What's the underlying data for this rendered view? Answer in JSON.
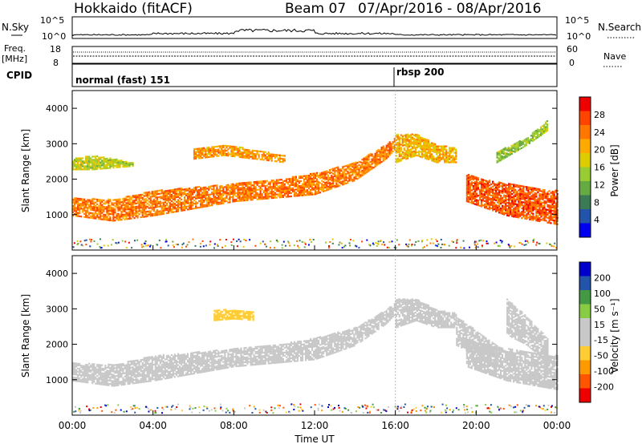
{
  "header": {
    "station": "Hokkaido (fitACF)",
    "beam": "Beam 07",
    "date_range": "07/Apr/2016 - 08/Apr/2016"
  },
  "top_panels": {
    "nsky_label": "N.Sky",
    "nsky_ticks": [
      "10^5",
      "10^0"
    ],
    "nsearch_label": "N.Search",
    "freq_label": "Freq.",
    "freq_unit": "[MHz]",
    "freq_ticks": [
      "18",
      "8"
    ],
    "nave_label": "Nave",
    "nave_ticks": [
      "60",
      "0"
    ],
    "cpid_label": "CPID",
    "cpid_modes": [
      {
        "name": "normal (fast) 151",
        "start_hour": 0
      },
      {
        "name": "rbsp 200",
        "start_hour": 16
      }
    ]
  },
  "colors": {
    "power": [
      "#0000ee",
      "#2255aa",
      "#3a7a55",
      "#66aa44",
      "#99cc33",
      "#ddcc00",
      "#ffaa00",
      "#ff7700",
      "#ff4400",
      "#ee0000"
    ],
    "velocity": [
      "#ee0000",
      "#ff5500",
      "#ff9900",
      "#ffcc33",
      "#c8c8c8",
      "#c8c8c8",
      "#88cc44",
      "#449944",
      "#2255aa",
      "#0000cc"
    ]
  },
  "chart_data": [
    {
      "type": "heatmap",
      "name": "power",
      "xlabel": "",
      "ylabel": "Slant Range [km]",
      "ylim": [
        0,
        4500
      ],
      "xlim": [
        0,
        24
      ],
      "yticks": [
        1000,
        2000,
        3000,
        4000
      ],
      "colorbar": {
        "label": "Power [dB]",
        "range": [
          0,
          32
        ],
        "ticks": [
          "28",
          "24",
          "20",
          "16",
          "12",
          "8",
          "4"
        ]
      },
      "bands": [
        {
          "x": [
            0,
            2,
            4,
            6,
            8,
            10,
            12,
            14,
            15.5,
            16
          ],
          "y_low": [
            1000,
            850,
            1000,
            1200,
            1400,
            1500,
            1600,
            2000,
            2600,
            2900
          ],
          "y_high": [
            1500,
            1450,
            1700,
            1800,
            1900,
            2000,
            2200,
            2500,
            3000,
            3200
          ],
          "value": 24
        },
        {
          "x": [
            16,
            17,
            18,
            19
          ],
          "y_low": [
            2500,
            2700,
            2500,
            2500
          ],
          "y_high": [
            3300,
            3300,
            3000,
            2900
          ],
          "value": 20
        },
        {
          "x": [
            19.5,
            20.5,
            21.5,
            22.5,
            24
          ],
          "y_low": [
            1400,
            1200,
            1000,
            900,
            750
          ],
          "y_high": [
            2200,
            2000,
            1900,
            1800,
            1700
          ],
          "value": 26
        },
        {
          "x": [
            0,
            1,
            2,
            3
          ],
          "y_low": [
            2300,
            2300,
            2350,
            2400
          ],
          "y_high": [
            2600,
            2700,
            2600,
            2500
          ],
          "value": 16
        },
        {
          "x": [
            6,
            7.5,
            9,
            10.5
          ],
          "y_low": [
            2600,
            2700,
            2600,
            2500
          ],
          "y_high": [
            2900,
            3000,
            2850,
            2700
          ],
          "value": 22
        },
        {
          "x": [
            21,
            22.5,
            23.5
          ],
          "y_low": [
            2500,
            3000,
            3400
          ],
          "y_high": [
            2800,
            3200,
            3700
          ],
          "value": 14
        }
      ]
    },
    {
      "type": "heatmap",
      "name": "velocity",
      "xlabel": "Time UT",
      "ylabel": "Slant Range [km]",
      "ylim": [
        0,
        4500
      ],
      "xlim": [
        0,
        24
      ],
      "yticks": [
        1000,
        2000,
        3000,
        4000
      ],
      "xticks": [
        "00:00",
        "04:00",
        "08:00",
        "12:00",
        "16:00",
        "20:00",
        "00:00"
      ],
      "xtick_hours": [
        0,
        4,
        8,
        12,
        16,
        20,
        24
      ],
      "colorbar": {
        "label": "Velocity [m s⁻¹]",
        "range": [
          -250,
          250
        ],
        "ticks": [
          "200",
          "100",
          "50",
          "15",
          "-15",
          "-50",
          "-100",
          "-200"
        ]
      },
      "bands": [
        {
          "x": [
            0,
            2,
            4,
            6,
            8,
            10,
            12,
            14,
            15.5,
            16
          ],
          "y_low": [
            1000,
            850,
            1000,
            1200,
            1400,
            1500,
            1600,
            2000,
            2600,
            2900
          ],
          "y_high": [
            1500,
            1450,
            1700,
            1800,
            1900,
            2000,
            2200,
            2500,
            3000,
            3200
          ],
          "value": 0
        },
        {
          "x": [
            16,
            17,
            18,
            19
          ],
          "y_low": [
            2500,
            2700,
            2500,
            2500
          ],
          "y_high": [
            3300,
            3300,
            3000,
            2900
          ],
          "value": 0
        },
        {
          "x": [
            19.5,
            20.5,
            21.5,
            22.5,
            24
          ],
          "y_low": [
            1400,
            1200,
            1000,
            900,
            750
          ],
          "y_high": [
            2200,
            2000,
            1900,
            1800,
            1700
          ],
          "value": 0
        },
        {
          "x": [
            19,
            20,
            21
          ],
          "y_low": [
            2000,
            1700,
            1300
          ],
          "y_high": [
            2800,
            2400,
            2000
          ],
          "value": 40
        },
        {
          "x": [
            21.5,
            22.5,
            23.5
          ],
          "y_low": [
            2300,
            2000,
            1500
          ],
          "y_high": [
            3300,
            2800,
            2200
          ],
          "value": 40
        },
        {
          "x": [
            7,
            8,
            9
          ],
          "y_low": [
            2700,
            2750,
            2700
          ],
          "y_high": [
            3000,
            3000,
            2950
          ],
          "value": -60
        }
      ]
    }
  ]
}
